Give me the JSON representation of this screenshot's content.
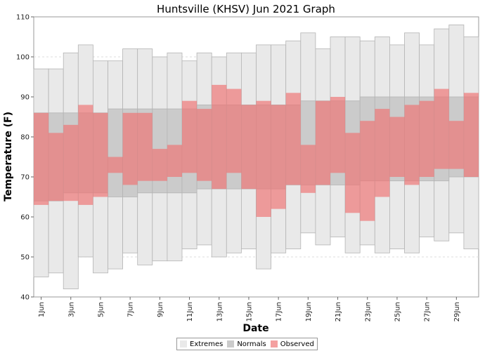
{
  "chart_data": {
    "type": "bar",
    "title": "Huntsville (KHSV) Jun 2021 Graph",
    "xlabel": "Date",
    "ylabel": "Temperature (F)",
    "ylim": [
      40,
      110
    ],
    "yticks": [
      40,
      50,
      60,
      70,
      80,
      90,
      100,
      110
    ],
    "grid": true,
    "legend_position": "bottom",
    "x": [
      "1Jun",
      "2Jun",
      "3Jun",
      "4Jun",
      "5Jun",
      "6Jun",
      "7Jun",
      "8Jun",
      "9Jun",
      "10Jun",
      "11Jun",
      "12Jun",
      "13Jun",
      "14Jun",
      "15Jun",
      "16Jun",
      "17Jun",
      "18Jun",
      "19Jun",
      "20Jun",
      "21Jun",
      "22Jun",
      "23Jun",
      "24Jun",
      "25Jun",
      "26Jun",
      "27Jun",
      "28Jun",
      "29Jun",
      "30Jun"
    ],
    "xtick_labels": [
      "1Jun",
      "3Jun",
      "5Jun",
      "7Jun",
      "9Jun",
      "11Jun",
      "13Jun",
      "15Jun",
      "17Jun",
      "19Jun",
      "21Jun",
      "23Jun",
      "25Jun",
      "27Jun",
      "29Jun"
    ],
    "series": [
      {
        "name": "Extremes",
        "color": "#e8e8e8",
        "low": [
          45,
          46,
          42,
          50,
          46,
          47,
          51,
          48,
          49,
          49,
          52,
          53,
          50,
          51,
          52,
          47,
          51,
          52,
          56,
          53,
          55,
          51,
          53,
          51,
          52,
          51,
          55,
          54,
          56,
          52
        ],
        "high": [
          97,
          97,
          101,
          103,
          99,
          99,
          102,
          102,
          100,
          101,
          99,
          101,
          100,
          101,
          101,
          103,
          103,
          104,
          106,
          102,
          105,
          105,
          104,
          105,
          103,
          106,
          103,
          107,
          108,
          105
        ]
      },
      {
        "name": "Normals",
        "color": "#cccccc",
        "low": [
          64,
          64,
          66,
          66,
          66,
          65,
          65,
          66,
          66,
          66,
          66,
          67,
          67,
          67,
          67,
          67,
          67,
          68,
          68,
          68,
          68,
          68,
          69,
          69,
          69,
          69,
          69,
          69,
          70,
          70
        ],
        "high": [
          86,
          86,
          86,
          86,
          86,
          87,
          87,
          87,
          87,
          87,
          87,
          88,
          88,
          88,
          88,
          88,
          88,
          88,
          89,
          89,
          89,
          89,
          90,
          90,
          90,
          90,
          90,
          90,
          90,
          90
        ]
      },
      {
        "name": "Observed",
        "color": "#f08080",
        "low": [
          63,
          64,
          64,
          63,
          65,
          71,
          68,
          69,
          69,
          70,
          71,
          69,
          67,
          71,
          67,
          60,
          62,
          68,
          66,
          68,
          71,
          61,
          59,
          65,
          70,
          68,
          70,
          72,
          72,
          70
        ],
        "high": [
          86,
          81,
          83,
          88,
          86,
          75,
          86,
          86,
          77,
          78,
          89,
          87,
          93,
          92,
          88,
          89,
          88,
          91,
          78,
          89,
          90,
          81,
          84,
          87,
          85,
          88,
          89,
          92,
          84,
          91
        ]
      }
    ]
  }
}
